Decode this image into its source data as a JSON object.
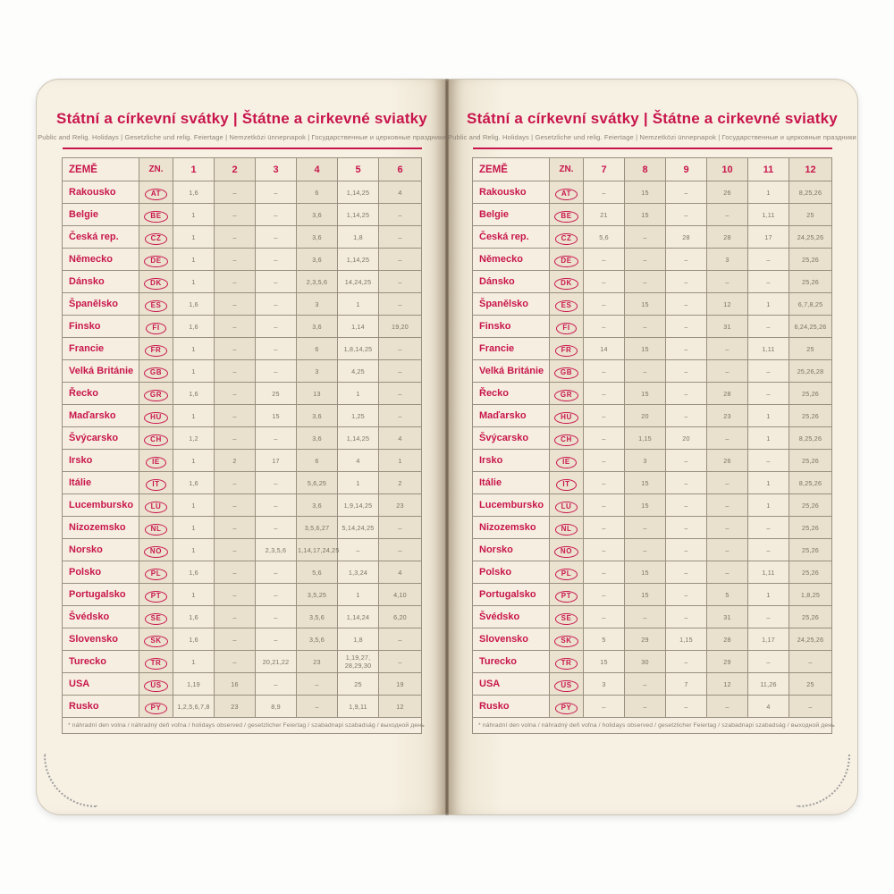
{
  "colors": {
    "accent_red": "#c8164c",
    "page_cream": "#f7f1e4",
    "shaded_column": "#e9e0cd",
    "cell_text": "#7b7264",
    "border": "#998f80"
  },
  "left_page": {
    "title": "Státní a církevní svátky | Štátne a cirkevné sviatky",
    "subtitle": "Public and Relig. Holidays | Gesetzliche und relig. Feiertage | Nemzetközi ünnepnapok | Государственные и церковные праздники",
    "footnote": "* náhradní den volna / náhradný deň voľna / holidays observed / gesetzlicher Feiertag / szabadnapi szabadság / выходной день",
    "table": {
      "col_country": "ZEMĚ",
      "col_code": "ZN.",
      "months": [
        "1",
        "2",
        "3",
        "4",
        "5",
        "6"
      ],
      "rows": [
        {
          "country": "Rakousko",
          "code": "AT",
          "values": [
            "1,6",
            "–",
            "–",
            "6",
            "1,14,25",
            "4"
          ]
        },
        {
          "country": "Belgie",
          "code": "BE",
          "values": [
            "1",
            "–",
            "–",
            "3,6",
            "1,14,25",
            "–"
          ]
        },
        {
          "country": "Česká rep.",
          "code": "CZ",
          "values": [
            "1",
            "–",
            "–",
            "3,6",
            "1,8",
            "–"
          ]
        },
        {
          "country": "Německo",
          "code": "DE",
          "values": [
            "1",
            "–",
            "–",
            "3,6",
            "1,14,25",
            "–"
          ]
        },
        {
          "country": "Dánsko",
          "code": "DK",
          "values": [
            "1",
            "–",
            "–",
            "2,3,5,6",
            "14,24,25",
            "–"
          ]
        },
        {
          "country": "Španělsko",
          "code": "ES",
          "values": [
            "1,6",
            "–",
            "–",
            "3",
            "1",
            "–"
          ]
        },
        {
          "country": "Finsko",
          "code": "FI",
          "values": [
            "1,6",
            "–",
            "–",
            "3,6",
            "1,14",
            "19,20"
          ]
        },
        {
          "country": "Francie",
          "code": "FR",
          "values": [
            "1",
            "–",
            "–",
            "6",
            "1,8,14,25",
            "–"
          ]
        },
        {
          "country": "Velká Británie",
          "code": "GB",
          "values": [
            "1",
            "–",
            "–",
            "3",
            "4,25",
            "–"
          ]
        },
        {
          "country": "Řecko",
          "code": "GR",
          "values": [
            "1,6",
            "–",
            "25",
            "13",
            "1",
            "–"
          ]
        },
        {
          "country": "Maďarsko",
          "code": "HU",
          "values": [
            "1",
            "–",
            "15",
            "3,6",
            "1,25",
            "–"
          ]
        },
        {
          "country": "Švýcarsko",
          "code": "CH",
          "values": [
            "1,2",
            "–",
            "–",
            "3,6",
            "1,14,25",
            "4"
          ]
        },
        {
          "country": "Irsko",
          "code": "IE",
          "values": [
            "1",
            "2",
            "17",
            "6",
            "4",
            "1"
          ]
        },
        {
          "country": "Itálie",
          "code": "IT",
          "values": [
            "1,6",
            "–",
            "–",
            "5,6,25",
            "1",
            "2"
          ]
        },
        {
          "country": "Lucembursko",
          "code": "LU",
          "values": [
            "1",
            "–",
            "–",
            "3,6",
            "1,9,14,25",
            "23"
          ]
        },
        {
          "country": "Nizozemsko",
          "code": "NL",
          "values": [
            "1",
            "–",
            "–",
            "3,5,6,27",
            "5,14,24,25",
            "–"
          ]
        },
        {
          "country": "Norsko",
          "code": "NO",
          "values": [
            "1",
            "–",
            "2,3,5,6",
            "1,14,17,24,25",
            "–",
            "–"
          ]
        },
        {
          "country": "Polsko",
          "code": "PL",
          "values": [
            "1,6",
            "–",
            "–",
            "5,6",
            "1,3,24",
            "4"
          ]
        },
        {
          "country": "Portugalsko",
          "code": "PT",
          "values": [
            "1",
            "–",
            "–",
            "3,5,25",
            "1",
            "4,10"
          ]
        },
        {
          "country": "Švédsko",
          "code": "SE",
          "values": [
            "1,6",
            "–",
            "–",
            "3,5,6",
            "1,14,24",
            "6,20"
          ]
        },
        {
          "country": "Slovensko",
          "code": "SK",
          "values": [
            "1,6",
            "–",
            "–",
            "3,5,6",
            "1,8",
            "–"
          ]
        },
        {
          "country": "Turecko",
          "code": "TR",
          "values": [
            "1",
            "–",
            "20,21,22",
            "23",
            "1,19,27, 28,29,30",
            "–"
          ]
        },
        {
          "country": "USA",
          "code": "US",
          "values": [
            "1,19",
            "16",
            "–",
            "–",
            "25",
            "19"
          ]
        },
        {
          "country": "Rusko",
          "code": "PY",
          "values": [
            "1,2,5,6,7,8",
            "23",
            "8,9",
            "–",
            "1,9,11",
            "12"
          ]
        }
      ]
    }
  },
  "right_page": {
    "title": "Státní a církevní svátky | Štátne a cirkevné sviatky",
    "subtitle": "Public and Relig. Holidays | Gesetzliche und relig. Feiertage | Nemzetközi ünnepnapok | Государственные и церковные праздники",
    "footnote": "* náhradní den volna / náhradný deň voľna / holidays observed / gesetzlicher Feiertag / szabadnapi szabadság / выходной день",
    "table": {
      "col_country": "ZEMĚ",
      "col_code": "ZN.",
      "months": [
        "7",
        "8",
        "9",
        "10",
        "11",
        "12"
      ],
      "rows": [
        {
          "country": "Rakousko",
          "code": "AT",
          "values": [
            "–",
            "15",
            "–",
            "26",
            "1",
            "8,25,26"
          ]
        },
        {
          "country": "Belgie",
          "code": "BE",
          "values": [
            "21",
            "15",
            "–",
            "–",
            "1,11",
            "25"
          ]
        },
        {
          "country": "Česká rep.",
          "code": "CZ",
          "values": [
            "5,6",
            "–",
            "28",
            "28",
            "17",
            "24,25,26"
          ]
        },
        {
          "country": "Německo",
          "code": "DE",
          "values": [
            "–",
            "–",
            "–",
            "3",
            "–",
            "25,26"
          ]
        },
        {
          "country": "Dánsko",
          "code": "DK",
          "values": [
            "–",
            "–",
            "–",
            "–",
            "–",
            "25,26"
          ]
        },
        {
          "country": "Španělsko",
          "code": "ES",
          "values": [
            "–",
            "15",
            "–",
            "12",
            "1",
            "6,7,8,25"
          ]
        },
        {
          "country": "Finsko",
          "code": "FI",
          "values": [
            "–",
            "–",
            "–",
            "31",
            "–",
            "6,24,25,26"
          ]
        },
        {
          "country": "Francie",
          "code": "FR",
          "values": [
            "14",
            "15",
            "–",
            "–",
            "1,11",
            "25"
          ]
        },
        {
          "country": "Velká Británie",
          "code": "GB",
          "values": [
            "–",
            "–",
            "–",
            "–",
            "–",
            "25,26,28"
          ]
        },
        {
          "country": "Řecko",
          "code": "GR",
          "values": [
            "–",
            "15",
            "–",
            "28",
            "–",
            "25,26"
          ]
        },
        {
          "country": "Maďarsko",
          "code": "HU",
          "values": [
            "–",
            "20",
            "–",
            "23",
            "1",
            "25,26"
          ]
        },
        {
          "country": "Švýcarsko",
          "code": "CH",
          "values": [
            "–",
            "1,15",
            "20",
            "–",
            "1",
            "8,25,26"
          ]
        },
        {
          "country": "Irsko",
          "code": "IE",
          "values": [
            "–",
            "3",
            "–",
            "26",
            "–",
            "25,26"
          ]
        },
        {
          "country": "Itálie",
          "code": "IT",
          "values": [
            "–",
            "15",
            "–",
            "–",
            "1",
            "8,25,26"
          ]
        },
        {
          "country": "Lucembursko",
          "code": "LU",
          "values": [
            "–",
            "15",
            "–",
            "–",
            "1",
            "25,26"
          ]
        },
        {
          "country": "Nizozemsko",
          "code": "NL",
          "values": [
            "–",
            "–",
            "–",
            "–",
            "–",
            "25,26"
          ]
        },
        {
          "country": "Norsko",
          "code": "NO",
          "values": [
            "–",
            "–",
            "–",
            "–",
            "–",
            "25,26"
          ]
        },
        {
          "country": "Polsko",
          "code": "PL",
          "values": [
            "–",
            "15",
            "–",
            "–",
            "1,11",
            "25,26"
          ]
        },
        {
          "country": "Portugalsko",
          "code": "PT",
          "values": [
            "–",
            "15",
            "–",
            "5",
            "1",
            "1,8,25"
          ]
        },
        {
          "country": "Švédsko",
          "code": "SE",
          "values": [
            "–",
            "–",
            "–",
            "31",
            "–",
            "25,26"
          ]
        },
        {
          "country": "Slovensko",
          "code": "SK",
          "values": [
            "5",
            "29",
            "1,15",
            "28",
            "1,17",
            "24,25,26"
          ]
        },
        {
          "country": "Turecko",
          "code": "TR",
          "values": [
            "15",
            "30",
            "–",
            "29",
            "–",
            "–"
          ]
        },
        {
          "country": "USA",
          "code": "US",
          "values": [
            "3",
            "–",
            "7",
            "12",
            "11,26",
            "25"
          ]
        },
        {
          "country": "Rusko",
          "code": "PY",
          "values": [
            "–",
            "–",
            "–",
            "–",
            "4",
            "–"
          ]
        }
      ]
    }
  }
}
